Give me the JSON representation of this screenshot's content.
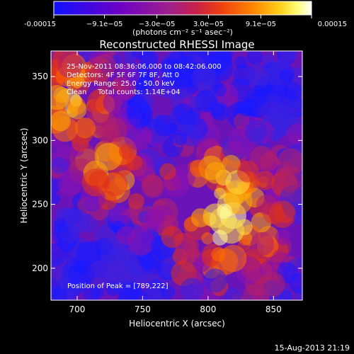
{
  "colorbar": {
    "tick_labels": [
      "-0.00015",
      "−9.1e−05",
      "−3.0e−05",
      "3.0e−05",
      "9.1e−05",
      "0.00015"
    ],
    "tick_values": [
      -0.00015,
      -9.1e-05,
      -3e-05,
      3e-05,
      9.1e-05,
      0.00015
    ],
    "range": [
      -0.00015,
      0.00015
    ],
    "units": "(photons cm⁻² s⁻¹ asec⁻²)",
    "colors": [
      "#1010ff",
      "#6a00c8",
      "#a0208c",
      "#c8204a",
      "#f04010",
      "#ff8a00",
      "#ffd21a",
      "#ffff80",
      "#ffffff"
    ]
  },
  "chart_data": {
    "type": "heatmap",
    "title": "Reconstructed RHESSI Image",
    "xlabel": "Heliocentric X (arcsec)",
    "ylabel": "Heliocentric Y (arcsec)",
    "xlim": [
      680,
      872
    ],
    "ylim": [
      175,
      370
    ],
    "x_ticks": [
      700,
      750,
      800,
      850
    ],
    "y_ticks": [
      200,
      250,
      300,
      350
    ],
    "annotations": [
      "25-Nov-2011 08:36:06.000 to 08:42:06.000",
      "Detectors: 4F 5F 6F 7F 8F, Att 0",
      "Energy Range: 25.0 - 50.0 keV",
      "Clean     Total counts: 1.14E+04"
    ],
    "peak_label": "Position of Peak = [789,222]",
    "peak": [
      789,
      222
    ]
  },
  "footer": {
    "date": "15-Aug-2013 21:19"
  }
}
